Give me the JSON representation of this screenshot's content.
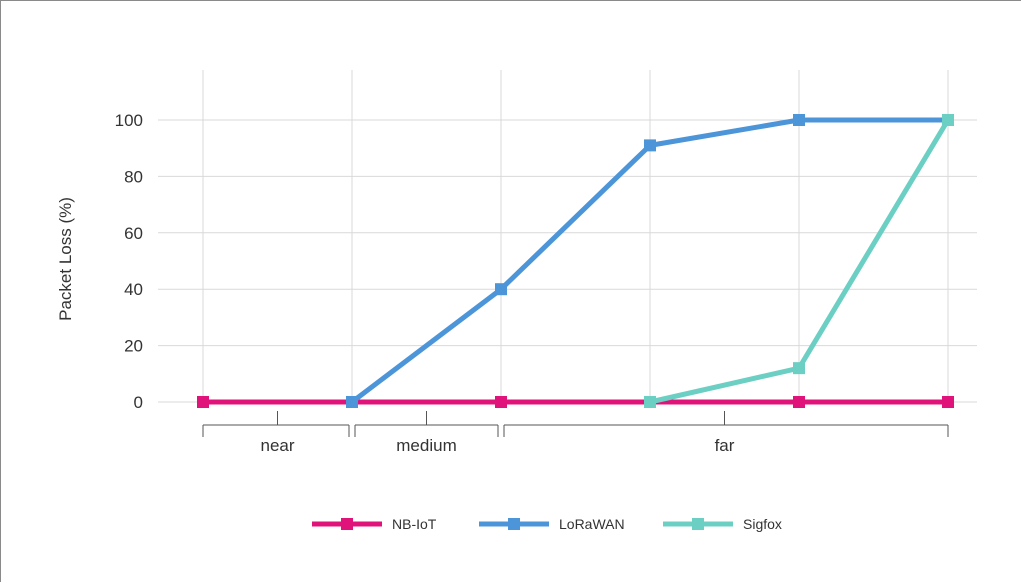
{
  "chart_data": {
    "type": "line",
    "ylabel": "Packet Loss (%)",
    "ylim": [
      0,
      110
    ],
    "yticks": [
      0,
      20,
      40,
      60,
      80,
      100
    ],
    "grid": true,
    "legend_placement": "bottom-center",
    "x_points": [
      1,
      2,
      3,
      4,
      5,
      6
    ],
    "x_groups": [
      {
        "label": "near",
        "from": 1,
        "to": 2
      },
      {
        "label": "medium",
        "from": 2,
        "to": 3
      },
      {
        "label": "far",
        "from": 3,
        "to": 6
      }
    ],
    "series": [
      {
        "name": "NB-IoT",
        "color": "#e0137a",
        "x": [
          1,
          2,
          3,
          4,
          5,
          6
        ],
        "values": [
          0,
          0,
          0,
          0,
          0,
          0
        ]
      },
      {
        "name": "LoRaWAN",
        "color": "#4c95d8",
        "x": [
          2,
          3,
          4,
          5,
          6
        ],
        "values": [
          0,
          40,
          91,
          100,
          100
        ]
      },
      {
        "name": "Sigfox",
        "color": "#6ccfc4",
        "x": [
          4,
          5,
          6
        ],
        "values": [
          0,
          12,
          100
        ]
      }
    ]
  }
}
